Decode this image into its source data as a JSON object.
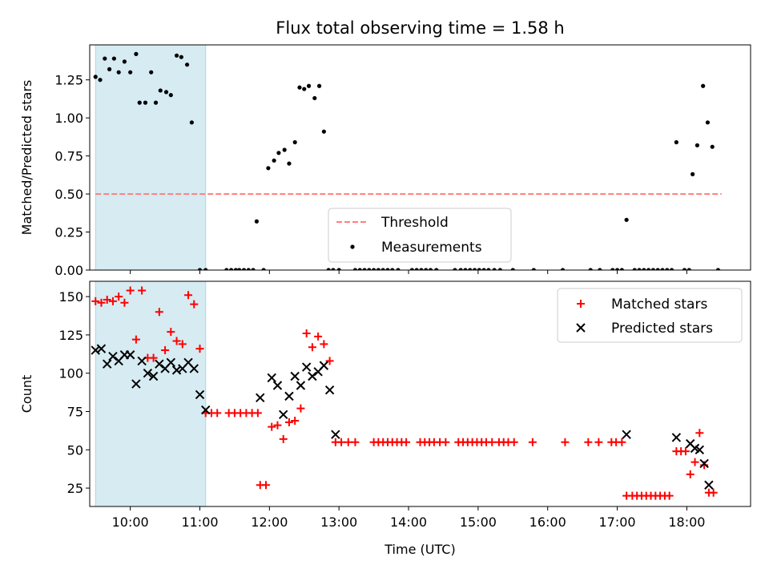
{
  "chart_data": [
    {
      "type": "scatter",
      "title": "Flux total observing time = 1.58 h",
      "ylabel": "Matched/Predicted stars",
      "xlabel": "",
      "xlim": [
        "09:25",
        "18:55"
      ],
      "ylim": [
        0,
        1.48
      ],
      "yticks": [
        "0.00",
        "0.25",
        "0.50",
        "0.75",
        "1.00",
        "1.25"
      ],
      "shaded_interval": [
        "09:30",
        "11:05"
      ],
      "threshold": {
        "name": "Threshold",
        "y": 0.5,
        "x_range": [
          "09:30",
          "18:30"
        ],
        "color": "#ff7f7f"
      },
      "legend_position": "lower-center",
      "series": [
        {
          "name": "Measurements",
          "color": "#000000",
          "points": [
            [
              "09:30",
              1.27
            ],
            [
              "09:34",
              1.25
            ],
            [
              "09:38",
              1.39
            ],
            [
              "09:42",
              1.32
            ],
            [
              "09:46",
              1.39
            ],
            [
              "09:50",
              1.3
            ],
            [
              "09:55",
              1.37
            ],
            [
              "10:00",
              1.3
            ],
            [
              "10:05",
              1.42
            ],
            [
              "10:08",
              1.1
            ],
            [
              "10:13",
              1.1
            ],
            [
              "10:18",
              1.3
            ],
            [
              "10:22",
              1.1
            ],
            [
              "10:26",
              1.18
            ],
            [
              "10:31",
              1.17
            ],
            [
              "10:35",
              1.15
            ],
            [
              "10:40",
              1.41
            ],
            [
              "10:44",
              1.4
            ],
            [
              "10:49",
              1.35
            ],
            [
              "10:53",
              0.97
            ],
            [
              "11:00",
              0.0
            ],
            [
              "11:05",
              0.0
            ],
            [
              "11:23",
              0.0
            ],
            [
              "11:27",
              0.0
            ],
            [
              "11:31",
              0.0
            ],
            [
              "11:34",
              0.0
            ],
            [
              "11:38",
              0.0
            ],
            [
              "11:42",
              0.0
            ],
            [
              "11:46",
              0.0
            ],
            [
              "11:49",
              0.32
            ],
            [
              "11:55",
              0.0
            ],
            [
              "11:59",
              0.67
            ],
            [
              "12:04",
              0.72
            ],
            [
              "12:08",
              0.77
            ],
            [
              "12:13",
              0.79
            ],
            [
              "12:17",
              0.7
            ],
            [
              "12:22",
              0.84
            ],
            [
              "12:26",
              1.2
            ],
            [
              "12:30",
              1.19
            ],
            [
              "12:34",
              1.21
            ],
            [
              "12:39",
              1.13
            ],
            [
              "12:43",
              1.21
            ],
            [
              "12:47",
              0.91
            ],
            [
              "12:51",
              0.0
            ],
            [
              "12:55",
              0.0
            ],
            [
              "13:00",
              0.0
            ],
            [
              "13:14",
              0.0
            ],
            [
              "13:18",
              0.0
            ],
            [
              "13:22",
              0.0
            ],
            [
              "13:26",
              0.0
            ],
            [
              "13:30",
              0.0
            ],
            [
              "13:34",
              0.0
            ],
            [
              "13:38",
              0.0
            ],
            [
              "13:42",
              0.0
            ],
            [
              "13:46",
              0.0
            ],
            [
              "13:51",
              0.0
            ],
            [
              "14:03",
              0.0
            ],
            [
              "14:07",
              0.0
            ],
            [
              "14:11",
              0.0
            ],
            [
              "14:15",
              0.0
            ],
            [
              "14:19",
              0.0
            ],
            [
              "14:24",
              0.0
            ],
            [
              "14:40",
              0.0
            ],
            [
              "14:45",
              0.0
            ],
            [
              "14:49",
              0.0
            ],
            [
              "14:53",
              0.0
            ],
            [
              "14:57",
              0.0
            ],
            [
              "15:01",
              0.0
            ],
            [
              "15:05",
              0.0
            ],
            [
              "15:09",
              0.0
            ],
            [
              "15:14",
              0.0
            ],
            [
              "15:19",
              0.0
            ],
            [
              "15:30",
              0.0
            ],
            [
              "15:48",
              0.0
            ],
            [
              "16:13",
              0.0
            ],
            [
              "16:37",
              0.0
            ],
            [
              "16:45",
              0.0
            ],
            [
              "16:56",
              0.0
            ],
            [
              "17:00",
              0.0
            ],
            [
              "17:04",
              0.0
            ],
            [
              "17:08",
              0.33
            ],
            [
              "17:15",
              0.0
            ],
            [
              "17:19",
              0.0
            ],
            [
              "17:23",
              0.0
            ],
            [
              "17:27",
              0.0
            ],
            [
              "17:31",
              0.0
            ],
            [
              "17:35",
              0.0
            ],
            [
              "17:39",
              0.0
            ],
            [
              "17:43",
              0.0
            ],
            [
              "17:47",
              0.0
            ],
            [
              "17:51",
              0.84
            ],
            [
              "17:58",
              0.0
            ],
            [
              "18:02",
              0.0
            ],
            [
              "18:05",
              0.63
            ],
            [
              "18:09",
              0.82
            ],
            [
              "18:14",
              1.21
            ],
            [
              "18:18",
              0.97
            ],
            [
              "18:22",
              0.81
            ],
            [
              "18:27",
              0.0
            ]
          ]
        }
      ]
    },
    {
      "type": "scatter",
      "title": "",
      "ylabel": "Count",
      "xlabel": "Time (UTC)",
      "xlim": [
        "09:25",
        "18:55"
      ],
      "ylim": [
        13,
        160
      ],
      "yticks": [
        "25",
        "50",
        "75",
        "100",
        "125",
        "150"
      ],
      "xticks": [
        "10:00",
        "11:00",
        "12:00",
        "13:00",
        "14:00",
        "15:00",
        "16:00",
        "17:00",
        "18:00"
      ],
      "shaded_interval": [
        "09:30",
        "11:05"
      ],
      "legend_position": "top-right",
      "series": [
        {
          "name": "Matched stars",
          "marker": "plus",
          "color": "#ff0000",
          "points": [
            [
              "09:30",
              147
            ],
            [
              "09:35",
              146
            ],
            [
              "09:40",
              148
            ],
            [
              "09:45",
              147
            ],
            [
              "09:50",
              150
            ],
            [
              "09:55",
              146
            ],
            [
              "10:00",
              154
            ],
            [
              "10:05",
              122
            ],
            [
              "10:10",
              154
            ],
            [
              "10:15",
              110
            ],
            [
              "10:20",
              110
            ],
            [
              "10:25",
              140
            ],
            [
              "10:30",
              115
            ],
            [
              "10:35",
              127
            ],
            [
              "10:40",
              121
            ],
            [
              "10:45",
              119
            ],
            [
              "10:50",
              151
            ],
            [
              "10:55",
              145
            ],
            [
              "11:00",
              116
            ],
            [
              "11:05",
              74
            ],
            [
              "11:10",
              74
            ],
            [
              "11:15",
              74
            ],
            [
              "11:25",
              74
            ],
            [
              "11:30",
              74
            ],
            [
              "11:35",
              74
            ],
            [
              "11:40",
              74
            ],
            [
              "11:45",
              74
            ],
            [
              "11:50",
              74
            ],
            [
              "11:52",
              27
            ],
            [
              "11:57",
              27
            ],
            [
              "12:02",
              65
            ],
            [
              "12:07",
              66
            ],
            [
              "12:12",
              57
            ],
            [
              "12:17",
              68
            ],
            [
              "12:22",
              69
            ],
            [
              "12:27",
              77
            ],
            [
              "12:32",
              126
            ],
            [
              "12:37",
              117
            ],
            [
              "12:42",
              124
            ],
            [
              "12:47",
              119
            ],
            [
              "12:52",
              108
            ],
            [
              "12:57",
              55
            ],
            [
              "13:02",
              55
            ],
            [
              "13:08",
              55
            ],
            [
              "13:14",
              55
            ],
            [
              "13:30",
              55
            ],
            [
              "13:34",
              55
            ],
            [
              "13:38",
              55
            ],
            [
              "13:42",
              55
            ],
            [
              "13:46",
              55
            ],
            [
              "13:50",
              55
            ],
            [
              "13:54",
              55
            ],
            [
              "13:58",
              55
            ],
            [
              "14:10",
              55
            ],
            [
              "14:14",
              55
            ],
            [
              "14:18",
              55
            ],
            [
              "14:22",
              55
            ],
            [
              "14:27",
              55
            ],
            [
              "14:32",
              55
            ],
            [
              "14:43",
              55
            ],
            [
              "14:47",
              55
            ],
            [
              "14:51",
              55
            ],
            [
              "14:55",
              55
            ],
            [
              "14:59",
              55
            ],
            [
              "15:03",
              55
            ],
            [
              "15:07",
              55
            ],
            [
              "15:12",
              55
            ],
            [
              "15:18",
              55
            ],
            [
              "15:22",
              55
            ],
            [
              "15:26",
              55
            ],
            [
              "15:31",
              55
            ],
            [
              "15:47",
              55
            ],
            [
              "16:15",
              55
            ],
            [
              "16:35",
              55
            ],
            [
              "16:44",
              55
            ],
            [
              "16:55",
              55
            ],
            [
              "16:59",
              55
            ],
            [
              "17:04",
              55
            ],
            [
              "17:08",
              20
            ],
            [
              "17:13",
              20
            ],
            [
              "17:17",
              20
            ],
            [
              "17:21",
              20
            ],
            [
              "17:25",
              20
            ],
            [
              "17:29",
              20
            ],
            [
              "17:33",
              20
            ],
            [
              "17:37",
              20
            ],
            [
              "17:41",
              20
            ],
            [
              "17:45",
              20
            ],
            [
              "17:51",
              49
            ],
            [
              "17:55",
              49
            ],
            [
              "17:59",
              49
            ],
            [
              "18:03",
              34
            ],
            [
              "18:07",
              42
            ],
            [
              "18:11",
              61
            ],
            [
              "18:15",
              40
            ],
            [
              "18:19",
              22
            ],
            [
              "18:23",
              22
            ]
          ]
        },
        {
          "name": "Predicted stars",
          "marker": "x",
          "color": "#000000",
          "points": [
            [
              "09:30",
              115
            ],
            [
              "09:35",
              116
            ],
            [
              "09:40",
              106
            ],
            [
              "09:45",
              111
            ],
            [
              "09:50",
              108
            ],
            [
              "09:55",
              112
            ],
            [
              "10:00",
              112
            ],
            [
              "10:05",
              93
            ],
            [
              "10:10",
              108
            ],
            [
              "10:15",
              100
            ],
            [
              "10:20",
              98
            ],
            [
              "10:25",
              106
            ],
            [
              "10:30",
              103
            ],
            [
              "10:35",
              107
            ],
            [
              "10:40",
              102
            ],
            [
              "10:45",
              103
            ],
            [
              "10:50",
              107
            ],
            [
              "10:55",
              103
            ],
            [
              "11:00",
              86
            ],
            [
              "11:05",
              76
            ],
            [
              "11:52",
              84
            ],
            [
              "12:02",
              97
            ],
            [
              "12:07",
              92
            ],
            [
              "12:12",
              73
            ],
            [
              "12:17",
              85
            ],
            [
              "12:22",
              98
            ],
            [
              "12:27",
              92
            ],
            [
              "12:32",
              104
            ],
            [
              "12:37",
              98
            ],
            [
              "12:42",
              101
            ],
            [
              "12:47",
              105
            ],
            [
              "12:52",
              89
            ],
            [
              "12:57",
              60
            ],
            [
              "17:08",
              60
            ],
            [
              "17:51",
              58
            ],
            [
              "18:03",
              54
            ],
            [
              "18:07",
              51
            ],
            [
              "18:11",
              50
            ],
            [
              "18:15",
              41
            ],
            [
              "18:19",
              27
            ]
          ]
        }
      ]
    }
  ]
}
